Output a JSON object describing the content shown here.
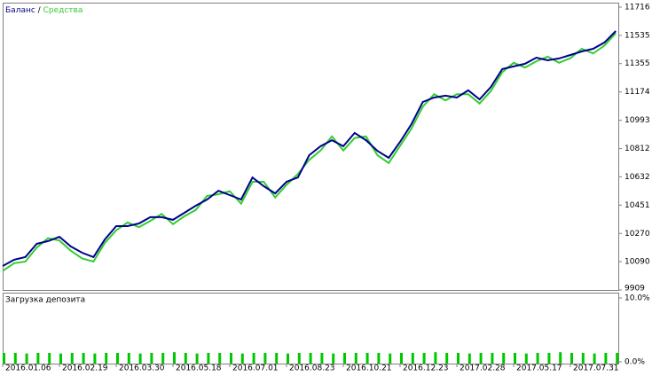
{
  "chart_data": {
    "type": "line",
    "legend_separator": "/",
    "x": [
      0,
      2,
      4,
      6,
      8,
      10,
      12,
      14,
      16,
      18,
      20,
      22,
      24,
      26,
      28,
      30,
      32,
      34,
      36,
      38,
      40,
      42,
      44,
      46,
      48,
      50,
      52,
      54,
      56,
      58,
      60,
      62,
      64,
      66,
      68,
      70,
      72,
      74,
      76,
      78,
      80,
      82,
      84,
      86,
      88,
      90,
      92,
      94,
      96,
      98,
      100,
      102,
      104,
      106,
      108
    ],
    "xlim": [
      0,
      108
    ],
    "xticks": [
      {
        "value": 0,
        "label": "2016.01.06"
      },
      {
        "value": 10,
        "label": "2016.02.19"
      },
      {
        "value": 20,
        "label": "2016.03.30"
      },
      {
        "value": 30,
        "label": "2016.05.18"
      },
      {
        "value": 40,
        "label": "2016.07.01"
      },
      {
        "value": 50,
        "label": "2016.08.23"
      },
      {
        "value": 60,
        "label": "2016.10.21"
      },
      {
        "value": 70,
        "label": "2016.12.23"
      },
      {
        "value": 80,
        "label": "2017.02.28"
      },
      {
        "value": 90,
        "label": "2017.05.17"
      },
      {
        "value": 100,
        "label": "2017.07.31"
      }
    ],
    "ylim": [
      9909,
      11716
    ],
    "yticks": [
      9909,
      10090,
      10270,
      10451,
      10632,
      10812,
      10993,
      11174,
      11355,
      11535,
      11716
    ],
    "series": [
      {
        "name": "Баланс",
        "color": "#00008b",
        "values": [
          10062,
          10102,
          10119,
          10204,
          10221,
          10249,
          10187,
          10147,
          10119,
          10232,
          10317,
          10317,
          10334,
          10374,
          10374,
          10357,
          10402,
          10447,
          10487,
          10543,
          10515,
          10487,
          10628,
          10572,
          10526,
          10600,
          10628,
          10770,
          10827,
          10866,
          10827,
          10912,
          10866,
          10798,
          10753,
          10855,
          10968,
          11110,
          11138,
          11150,
          11138,
          11184,
          11127,
          11206,
          11320,
          11337,
          11354,
          11393,
          11376,
          11388,
          11410,
          11433,
          11450,
          11490,
          11563
        ]
      },
      {
        "name": "Средства",
        "color": "#32cd32",
        "values": [
          10030,
          10080,
          10090,
          10180,
          10240,
          10225,
          10160,
          10110,
          10090,
          10210,
          10290,
          10340,
          10310,
          10350,
          10395,
          10330,
          10380,
          10420,
          10510,
          10520,
          10540,
          10460,
          10600,
          10600,
          10500,
          10580,
          10650,
          10740,
          10800,
          10890,
          10800,
          10880,
          10890,
          10770,
          10720,
          10830,
          10940,
          11080,
          11160,
          11120,
          11160,
          11160,
          11100,
          11180,
          11300,
          11360,
          11330,
          11370,
          11400,
          11360,
          11390,
          11450,
          11420,
          11470,
          11550
        ]
      }
    ],
    "subchart": {
      "title": "Загрузка депозита",
      "color": "#00c800",
      "ylim": [
        0,
        10
      ],
      "yticks": [
        {
          "value": 10,
          "label": "10.0%"
        },
        {
          "value": 0,
          "label": "0.0%"
        }
      ],
      "values": [
        1.4,
        1.4,
        1.3,
        1.4,
        1.4,
        1.3,
        1.4,
        1.4,
        1.3,
        1.4,
        1.4,
        1.4,
        1.3,
        1.4,
        1.4,
        1.5,
        1.4,
        1.3,
        1.4,
        1.4,
        1.4,
        1.3,
        1.4,
        1.4,
        1.4,
        1.3,
        1.4,
        1.4,
        1.4,
        1.3,
        1.4,
        1.4,
        1.4,
        1.4,
        1.3,
        1.4,
        1.4,
        1.4,
        1.5,
        1.4,
        1.4,
        1.3,
        1.4,
        1.4,
        1.4,
        1.4,
        1.3,
        1.4,
        1.4,
        1.5,
        1.4,
        1.4,
        1.3,
        1.4,
        1.4
      ]
    }
  }
}
